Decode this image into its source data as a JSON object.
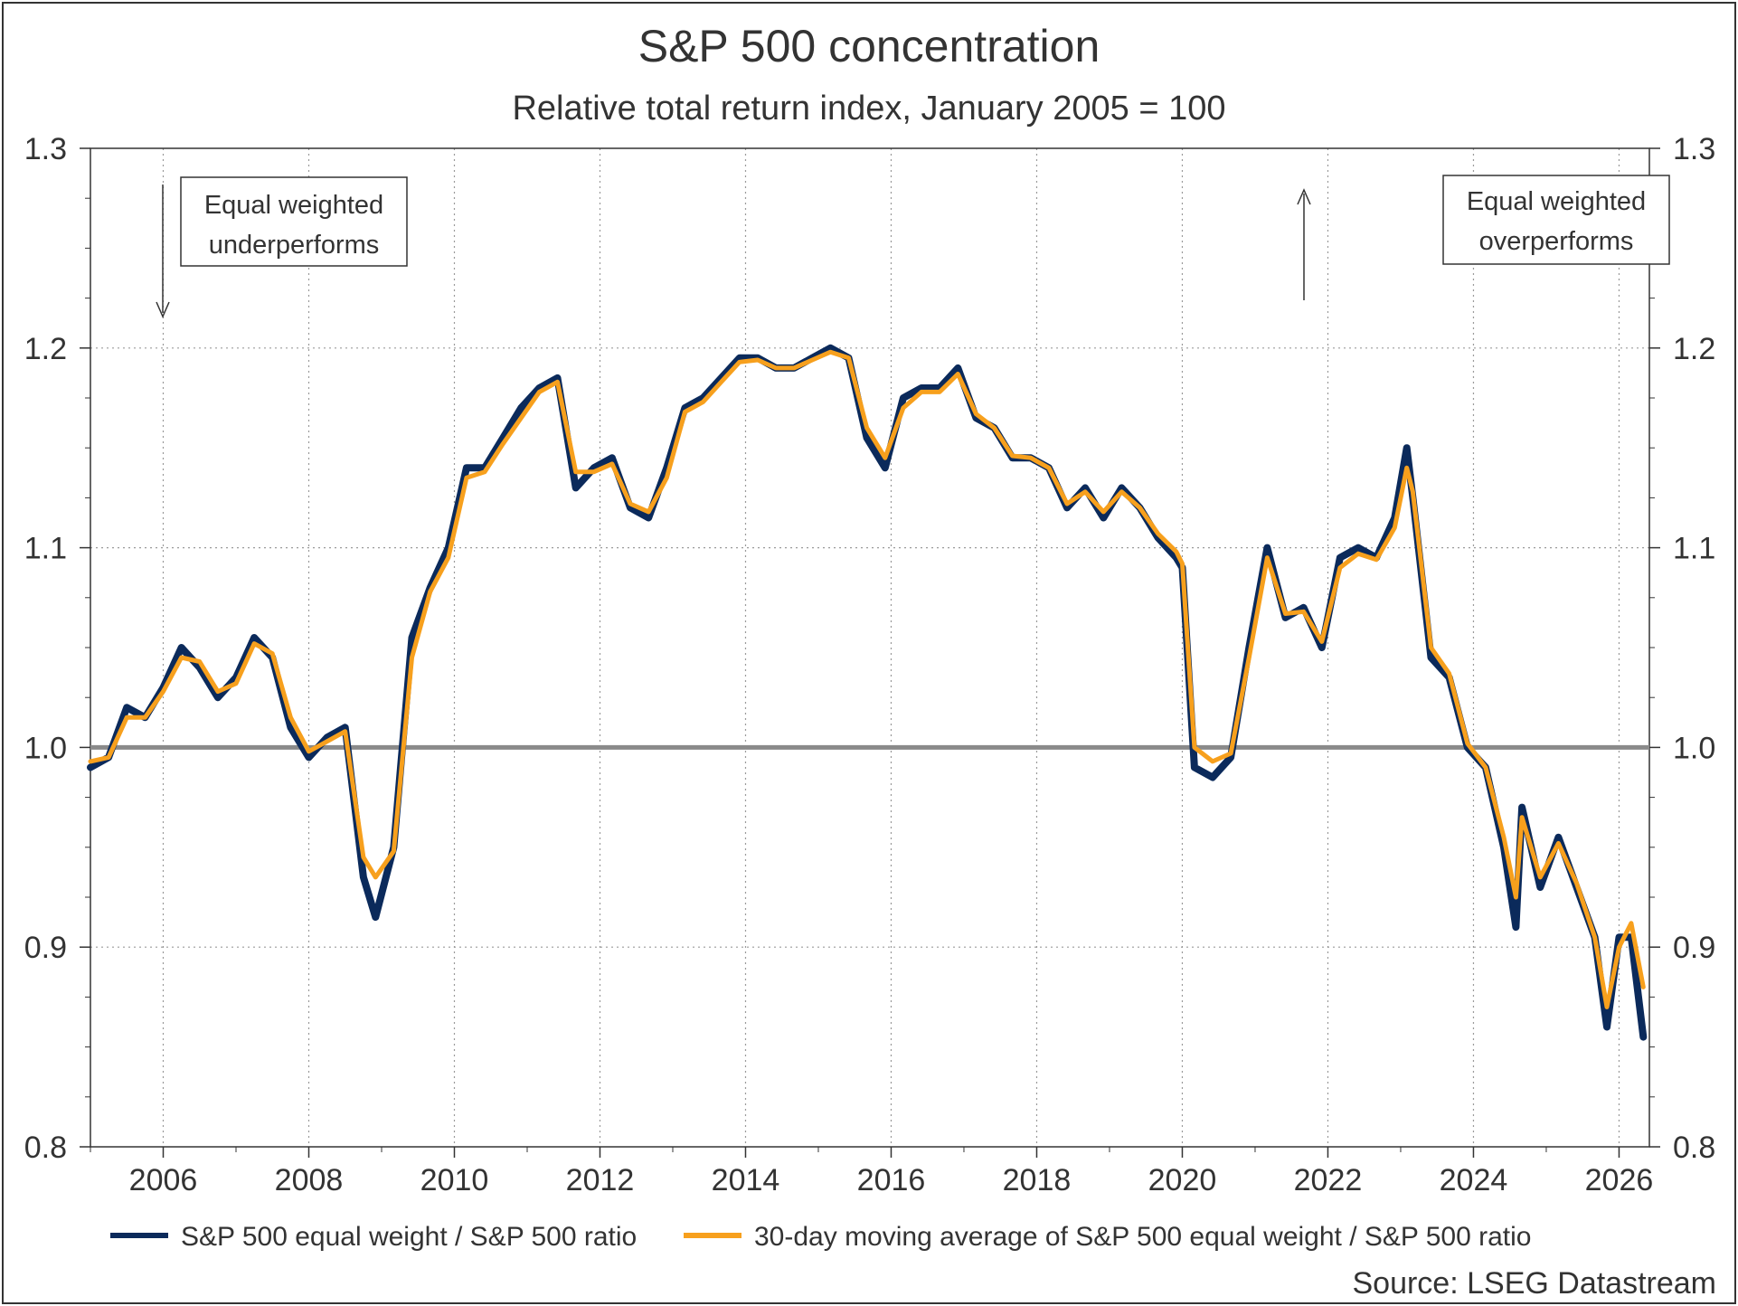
{
  "chart_data": {
    "type": "line",
    "title": "S&P 500 concentration",
    "subtitle": "Relative total return index, January 2005 = 100",
    "source": "Source: LSEG Datastream",
    "xlim": [
      "2005-01",
      "2026-06"
    ],
    "ylim": [
      0.8,
      1.3
    ],
    "x_ticks": [
      "2006",
      "2008",
      "2010",
      "2012",
      "2014",
      "2016",
      "2018",
      "2020",
      "2022",
      "2024",
      "2026"
    ],
    "y_ticks": [
      "0.8",
      "0.9",
      "1.0",
      "1.1",
      "1.2",
      "1.3"
    ],
    "grid": true,
    "reference_line": 1.0,
    "legend_position": "bottom",
    "annotations": [
      {
        "text_line1": "Equal weighted",
        "text_line2": "underperforms",
        "arrow": "down"
      },
      {
        "text_line1": "Equal weighted",
        "text_line2": "overperforms",
        "arrow": "up"
      }
    ],
    "series": [
      {
        "name": "S&P 500 equal weight / S&P 500 ratio",
        "color": "#0b2a5b",
        "x": [
          "2005-01",
          "2005-04",
          "2005-07",
          "2005-10",
          "2006-01",
          "2006-04",
          "2006-07",
          "2006-10",
          "2007-01",
          "2007-04",
          "2007-07",
          "2007-10",
          "2008-01",
          "2008-04",
          "2008-07",
          "2008-10",
          "2008-12",
          "2009-03",
          "2009-06",
          "2009-09",
          "2009-12",
          "2010-03",
          "2010-06",
          "2010-09",
          "2010-12",
          "2011-03",
          "2011-06",
          "2011-09",
          "2011-12",
          "2012-03",
          "2012-06",
          "2012-09",
          "2012-12",
          "2013-03",
          "2013-06",
          "2013-09",
          "2013-12",
          "2014-03",
          "2014-06",
          "2014-09",
          "2014-12",
          "2015-03",
          "2015-06",
          "2015-09",
          "2015-12",
          "2016-03",
          "2016-06",
          "2016-09",
          "2016-12",
          "2017-03",
          "2017-06",
          "2017-09",
          "2017-12",
          "2018-03",
          "2018-06",
          "2018-09",
          "2018-12",
          "2019-03",
          "2019-06",
          "2019-09",
          "2019-12",
          "2020-01",
          "2020-03",
          "2020-06",
          "2020-09",
          "2020-12",
          "2021-03",
          "2021-06",
          "2021-09",
          "2021-12",
          "2022-03",
          "2022-06",
          "2022-09",
          "2022-12",
          "2023-02",
          "2023-03",
          "2023-06",
          "2023-09",
          "2023-12",
          "2024-03",
          "2024-06",
          "2024-08",
          "2024-09",
          "2024-12",
          "2025-03",
          "2025-06",
          "2025-09",
          "2025-11",
          "2026-01",
          "2026-03",
          "2026-05"
        ],
        "y": [
          0.99,
          0.995,
          1.02,
          1.015,
          1.03,
          1.05,
          1.04,
          1.025,
          1.035,
          1.055,
          1.045,
          1.01,
          0.995,
          1.005,
          1.01,
          0.935,
          0.915,
          0.95,
          1.055,
          1.08,
          1.1,
          1.14,
          1.14,
          1.155,
          1.17,
          1.18,
          1.185,
          1.13,
          1.14,
          1.145,
          1.12,
          1.115,
          1.14,
          1.17,
          1.175,
          1.185,
          1.195,
          1.195,
          1.19,
          1.19,
          1.195,
          1.2,
          1.195,
          1.155,
          1.14,
          1.175,
          1.18,
          1.18,
          1.19,
          1.165,
          1.16,
          1.145,
          1.145,
          1.14,
          1.12,
          1.13,
          1.115,
          1.13,
          1.12,
          1.105,
          1.095,
          1.09,
          0.99,
          0.985,
          0.995,
          1.05,
          1.1,
          1.065,
          1.07,
          1.05,
          1.095,
          1.1,
          1.095,
          1.115,
          1.15,
          1.125,
          1.045,
          1.035,
          1.0,
          0.99,
          0.95,
          0.91,
          0.97,
          0.93,
          0.955,
          0.93,
          0.905,
          0.86,
          0.905,
          0.905,
          0.855
        ]
      },
      {
        "name": "30-day moving average of S&P 500 equal weight / S&P 500 ratio",
        "color": "#f7a01d",
        "x": [
          "2005-01",
          "2005-04",
          "2005-07",
          "2005-10",
          "2006-01",
          "2006-04",
          "2006-07",
          "2006-10",
          "2007-01",
          "2007-04",
          "2007-07",
          "2007-10",
          "2008-01",
          "2008-04",
          "2008-07",
          "2008-10",
          "2008-12",
          "2009-03",
          "2009-06",
          "2009-09",
          "2009-12",
          "2010-03",
          "2010-06",
          "2010-09",
          "2010-12",
          "2011-03",
          "2011-06",
          "2011-09",
          "2011-12",
          "2012-03",
          "2012-06",
          "2012-09",
          "2012-12",
          "2013-03",
          "2013-06",
          "2013-09",
          "2013-12",
          "2014-03",
          "2014-06",
          "2014-09",
          "2014-12",
          "2015-03",
          "2015-06",
          "2015-09",
          "2015-12",
          "2016-03",
          "2016-06",
          "2016-09",
          "2016-12",
          "2017-03",
          "2017-06",
          "2017-09",
          "2017-12",
          "2018-03",
          "2018-06",
          "2018-09",
          "2018-12",
          "2019-03",
          "2019-06",
          "2019-09",
          "2019-12",
          "2020-01",
          "2020-03",
          "2020-06",
          "2020-09",
          "2020-12",
          "2021-03",
          "2021-06",
          "2021-09",
          "2021-12",
          "2022-03",
          "2022-06",
          "2022-09",
          "2022-12",
          "2023-02",
          "2023-03",
          "2023-06",
          "2023-09",
          "2023-12",
          "2024-03",
          "2024-06",
          "2024-08",
          "2024-09",
          "2024-12",
          "2025-03",
          "2025-06",
          "2025-09",
          "2025-11",
          "2026-01",
          "2026-03",
          "2026-05"
        ],
        "y": [
          0.993,
          0.995,
          1.015,
          1.015,
          1.028,
          1.045,
          1.043,
          1.028,
          1.032,
          1.052,
          1.047,
          1.015,
          0.998,
          1.003,
          1.008,
          0.945,
          0.935,
          0.948,
          1.045,
          1.078,
          1.095,
          1.135,
          1.138,
          1.152,
          1.165,
          1.178,
          1.183,
          1.138,
          1.138,
          1.142,
          1.122,
          1.118,
          1.135,
          1.168,
          1.173,
          1.183,
          1.193,
          1.194,
          1.19,
          1.19,
          1.194,
          1.198,
          1.195,
          1.16,
          1.145,
          1.17,
          1.178,
          1.178,
          1.187,
          1.167,
          1.16,
          1.146,
          1.145,
          1.14,
          1.122,
          1.128,
          1.118,
          1.128,
          1.12,
          1.107,
          1.098,
          1.092,
          1.0,
          0.993,
          0.997,
          1.045,
          1.095,
          1.067,
          1.068,
          1.053,
          1.09,
          1.097,
          1.094,
          1.11,
          1.14,
          1.128,
          1.05,
          1.037,
          1.002,
          0.99,
          0.955,
          0.925,
          0.965,
          0.935,
          0.952,
          0.932,
          0.905,
          0.87,
          0.9,
          0.912,
          0.88
        ]
      }
    ]
  }
}
